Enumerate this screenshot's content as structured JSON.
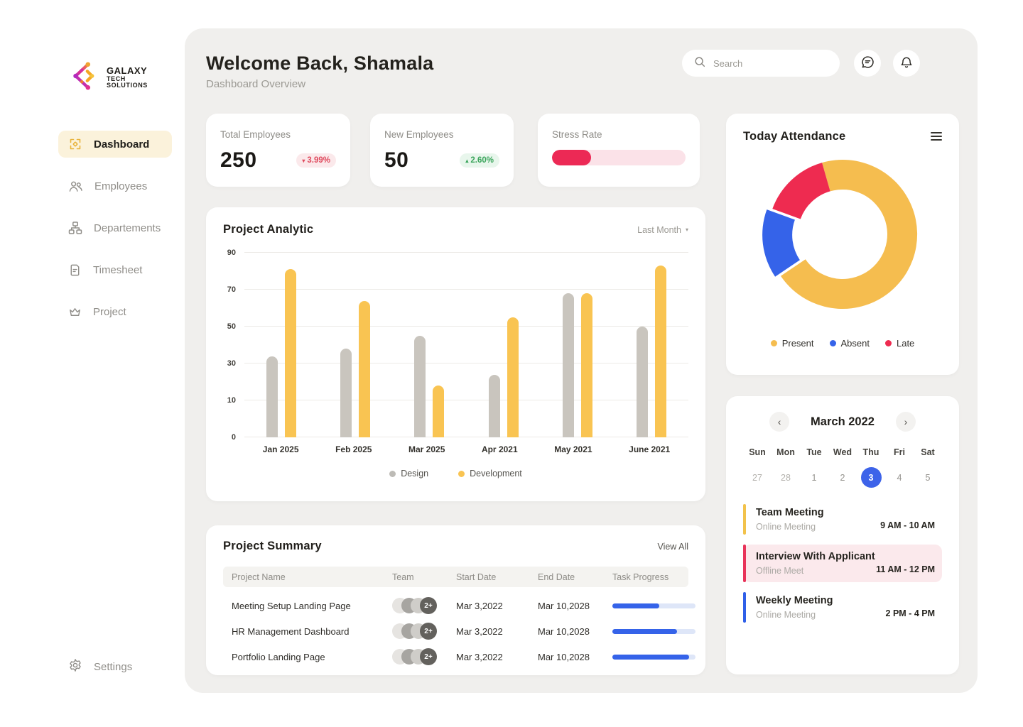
{
  "brand": {
    "line1": "GALAXY",
    "line2": "TECH",
    "line3": "SOLUTIONS"
  },
  "sidebar": {
    "items": [
      {
        "label": "Dashboard",
        "icon": "dashboard-icon",
        "active": true
      },
      {
        "label": "Employees",
        "icon": "employees-icon",
        "active": false
      },
      {
        "label": "Departements",
        "icon": "departments-icon",
        "active": false
      },
      {
        "label": "Timesheet",
        "icon": "timesheet-icon",
        "active": false
      },
      {
        "label": "Project",
        "icon": "project-icon",
        "active": false
      }
    ],
    "settings_label": "Settings"
  },
  "header": {
    "title": "Welcome Back, Shamala",
    "subtitle": "Dashboard Overview",
    "search_placeholder": "Search"
  },
  "stats": {
    "total": {
      "label": "Total Employees",
      "value": "250",
      "delta": "3.99%",
      "direction": "down"
    },
    "new": {
      "label": "New Employees",
      "value": "50",
      "delta": "2.60%",
      "direction": "up"
    },
    "stress": {
      "label": "Stress Rate",
      "progress_pct": 29
    }
  },
  "colors": {
    "accent_blue": "#3563e9",
    "accent_yellow": "#f9c452",
    "accent_red": "#ec2955",
    "accent_green": "#3ba55c",
    "bar_gray": "#c9c5be"
  },
  "chart_data": [
    {
      "type": "bar",
      "title": "Project Analytic",
      "filter_label": "Last Month",
      "categories": [
        "Jan 2025",
        "Feb 2025",
        "Mar 2025",
        "Apr 2021",
        "May 2021",
        "June 2021"
      ],
      "series": [
        {
          "name": "Design",
          "color": "#c9c5be",
          "values": [
            34,
            38,
            45,
            24,
            68,
            50
          ]
        },
        {
          "name": "Development",
          "color": "#f9c452",
          "values": [
            81,
            64,
            18,
            55,
            68,
            83
          ]
        }
      ],
      "yticks": [
        0,
        10,
        30,
        50,
        70,
        90
      ],
      "grid": true,
      "legend_position": "bottom"
    },
    {
      "type": "donut",
      "title": "Today Attendance",
      "segments": [
        {
          "label": "Present",
          "value": 70,
          "color": "#f5bd4f",
          "exploded": false
        },
        {
          "label": "Absent",
          "value": 15,
          "color": "#3563e9",
          "exploded": true
        },
        {
          "label": "Late",
          "value": 15,
          "color": "#ee2b50",
          "exploded": false
        }
      ],
      "start_angle": -16,
      "legend_position": "bottom"
    }
  ],
  "calendar": {
    "month_label": "March 2022",
    "day_headers": [
      "Sun",
      "Mon",
      "Tue",
      "Wed",
      "Thu",
      "Fri",
      "Sat"
    ],
    "dates": [
      {
        "day": "27",
        "muted": true,
        "selected": false
      },
      {
        "day": "28",
        "muted": true,
        "selected": false
      },
      {
        "day": "1",
        "muted": false,
        "selected": false
      },
      {
        "day": "2",
        "muted": false,
        "selected": false
      },
      {
        "day": "3",
        "muted": false,
        "selected": true
      },
      {
        "day": "4",
        "muted": false,
        "selected": false
      },
      {
        "day": "5",
        "muted": false,
        "selected": false
      }
    ]
  },
  "events": [
    {
      "title": "Team Meeting",
      "subtitle": "Online Meeting",
      "time": "9 AM - 10 AM",
      "accent": "#f2c24b",
      "highlighted": false
    },
    {
      "title": "Interview With Applicant",
      "subtitle": "Offline Meet",
      "time": "11 AM - 12 PM",
      "accent": "#e8345a",
      "highlighted": true
    },
    {
      "title": "Weekly Meeting",
      "subtitle": "Online Meeting",
      "time": "2 PM - 4 PM",
      "accent": "#2f5fe8",
      "highlighted": false
    }
  ],
  "summary": {
    "title": "Project Summary",
    "view_all": "View All",
    "columns": [
      "Project Name",
      "Team",
      "Start Date",
      "End Date",
      "Task Progress"
    ],
    "rows": [
      {
        "name": "Meeting Setup Landing Page",
        "team": "2+",
        "start": "Mar 3,2022",
        "end": "Mar 10,2028",
        "progress_pct": 56
      },
      {
        "name": "HR Management Dashboard",
        "team": "2+",
        "start": "Mar 3,2022",
        "end": "Mar 10,2028",
        "progress_pct": 78
      },
      {
        "name": "Portfolio Landing Page",
        "team": "2+",
        "start": "Mar 3,2022",
        "end": "Mar 10,2028",
        "progress_pct": 92
      }
    ]
  }
}
